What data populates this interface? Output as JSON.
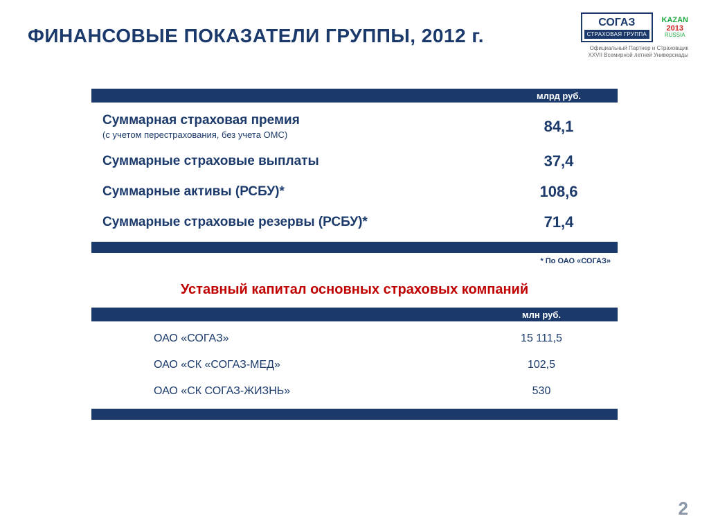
{
  "colors": {
    "primary": "#1b3a6b",
    "accent_red": "#c00000",
    "background": "#ffffff",
    "page_number": "#8a96a8",
    "logo_caption": "#666666"
  },
  "title": "ФИНАНСОВЫЕ ПОКАЗАТЕЛИ ГРУППЫ, 2012 г.",
  "logo": {
    "top": "СОГАЗ",
    "bottom": "СТРАХОВАЯ ГРУППА",
    "caption_line1": "Официальный Партнер и Страховщик",
    "caption_line2": "XXVII  Всемирной летней Универсиады",
    "kazan_l1": "KAZAN",
    "kazan_l2": "2013",
    "kazan_l3": "RUSSIA"
  },
  "table1": {
    "unit_header": "млрд руб.",
    "rows": [
      {
        "label": "Суммарная страховая премия",
        "sublabel": "(с учетом перестрахования, без учета ОМС)",
        "value": "84,1"
      },
      {
        "label": "Суммарные страховые выплаты",
        "sublabel": "",
        "value": "37,4"
      },
      {
        "label": "Суммарные активы (РСБУ)*",
        "sublabel": "",
        "value": "108,6"
      },
      {
        "label": "Суммарные страховые резервы (РСБУ)*",
        "sublabel": "",
        "value": "71,4"
      }
    ],
    "footnote": "* По ОАО «СОГАЗ»"
  },
  "subtitle": "Уставный капитал основных страховых компаний",
  "table2": {
    "unit_header": "млн руб.",
    "rows": [
      {
        "label": "ОАО «СОГАЗ»",
        "value": "15 111,5"
      },
      {
        "label": "ОАО «СК «СОГАЗ-МЕД»",
        "value": "102,5"
      },
      {
        "label": "ОАО «СК СОГАЗ-ЖИЗНЬ»",
        "value": "530"
      }
    ]
  },
  "page_number": "2"
}
